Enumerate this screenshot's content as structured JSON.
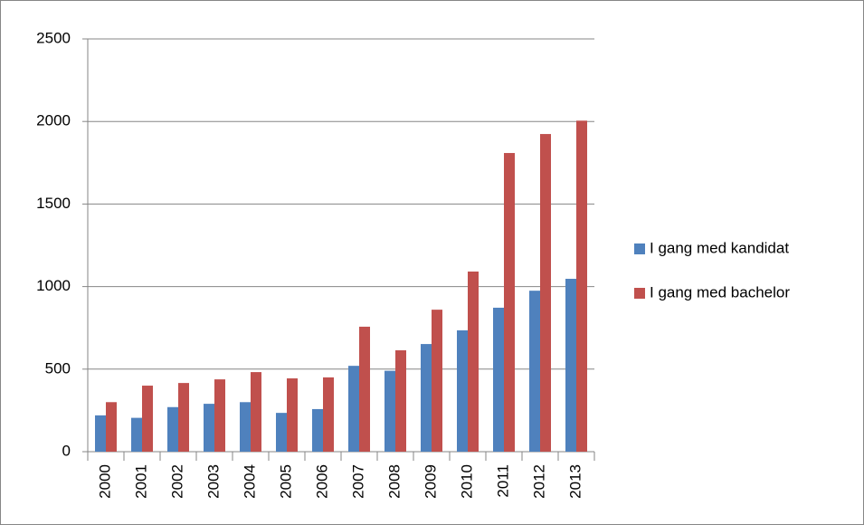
{
  "chart_data": {
    "type": "bar",
    "categories": [
      "2000",
      "2001",
      "2002",
      "2003",
      "2004",
      "2005",
      "2006",
      "2007",
      "2008",
      "2009",
      "2010",
      "2011",
      "2012",
      "2013"
    ],
    "series": [
      {
        "name": "I gang med kandidat",
        "color": "#4f81bd",
        "values": [
          220,
          205,
          270,
          290,
          300,
          235,
          258,
          520,
          490,
          652,
          735,
          872,
          975,
          1047
        ]
      },
      {
        "name": "I gang med bachelor",
        "color": "#c0504d",
        "values": [
          300,
          400,
          416,
          438,
          482,
          444,
          450,
          757,
          614,
          860,
          1091,
          1809,
          1924,
          2005
        ]
      }
    ],
    "ylim": [
      0,
      2500
    ],
    "yticks": [
      0,
      500,
      1000,
      1500,
      2000,
      2500
    ],
    "grid": true,
    "legend": "right"
  }
}
